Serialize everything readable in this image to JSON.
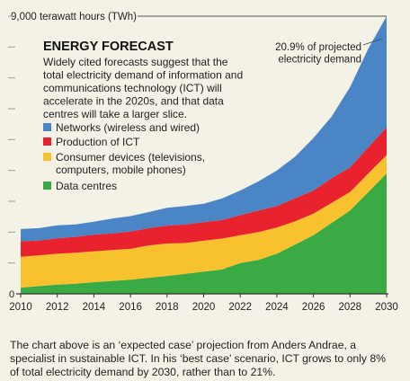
{
  "chart_data": {
    "type": "area",
    "stacked": true,
    "title": "ENERGY FORECAST",
    "subtitle": "Widely cited forecasts suggest that the total electricity demand of information and communications technology (ICT) will accelerate in the 2020s, and that data centres will take a larger slice.",
    "ylabel": "9,000 terawatt hours (TWh)",
    "xlabel": "",
    "ylim": [
      0,
      9000
    ],
    "xlim": [
      2010,
      2030
    ],
    "x_ticks": [
      "2010",
      "2012",
      "2014",
      "2016",
      "2018",
      "2020",
      "2022",
      "2024",
      "2026",
      "2028",
      "2030"
    ],
    "y_tick_labels": [
      "0"
    ],
    "annotation": "20.9% of projected electricity demand",
    "x": [
      2010,
      2011,
      2012,
      2013,
      2014,
      2015,
      2016,
      2017,
      2018,
      2019,
      2020,
      2021,
      2022,
      2023,
      2024,
      2025,
      2026,
      2027,
      2028,
      2029,
      2030
    ],
    "series": [
      {
        "name": "Data centres",
        "color": "#3aaa45",
        "values": [
          200,
          250,
          300,
          330,
          380,
          420,
          460,
          520,
          580,
          650,
          720,
          790,
          1000,
          1100,
          1300,
          1600,
          1900,
          2300,
          2700,
          3300,
          3900
        ]
      },
      {
        "name": "Consumer devices (televisions, computers, mobile phones)",
        "color": "#f8c22e",
        "values": [
          1000,
          1000,
          1000,
          1000,
          1000,
          1000,
          1000,
          1050,
          1050,
          1000,
          1000,
          1000,
          900,
          900,
          850,
          750,
          700,
          650,
          600,
          600,
          600
        ]
      },
      {
        "name": "Production of ICT",
        "color": "#e8232e",
        "values": [
          500,
          480,
          500,
          520,
          540,
          540,
          560,
          560,
          580,
          600,
          600,
          600,
          650,
          700,
          700,
          750,
          750,
          800,
          800,
          850,
          900
        ]
      },
      {
        "name": "Networks (wireless and wired)",
        "color": "#4a86c6",
        "values": [
          400,
          400,
          420,
          400,
          420,
          480,
          500,
          520,
          580,
          600,
          600,
          700,
          800,
          950,
          1150,
          1350,
          1700,
          2000,
          2600,
          3200,
          3600
        ]
      }
    ],
    "legend_order": [
      "Networks (wireless and wired)",
      "Production of ICT",
      "Consumer devices (televisions, computers, mobile phones)",
      "Data centres"
    ],
    "grid": false,
    "legend_placement": "top-left"
  },
  "caption": "The chart above is an ‘expected case’ projection from Anders Andrae, a specialist in sustainable ICT. In his ‘best case’ scenario, ICT grows to only 8% of total electricity demand by 2030, rather than to 21%."
}
